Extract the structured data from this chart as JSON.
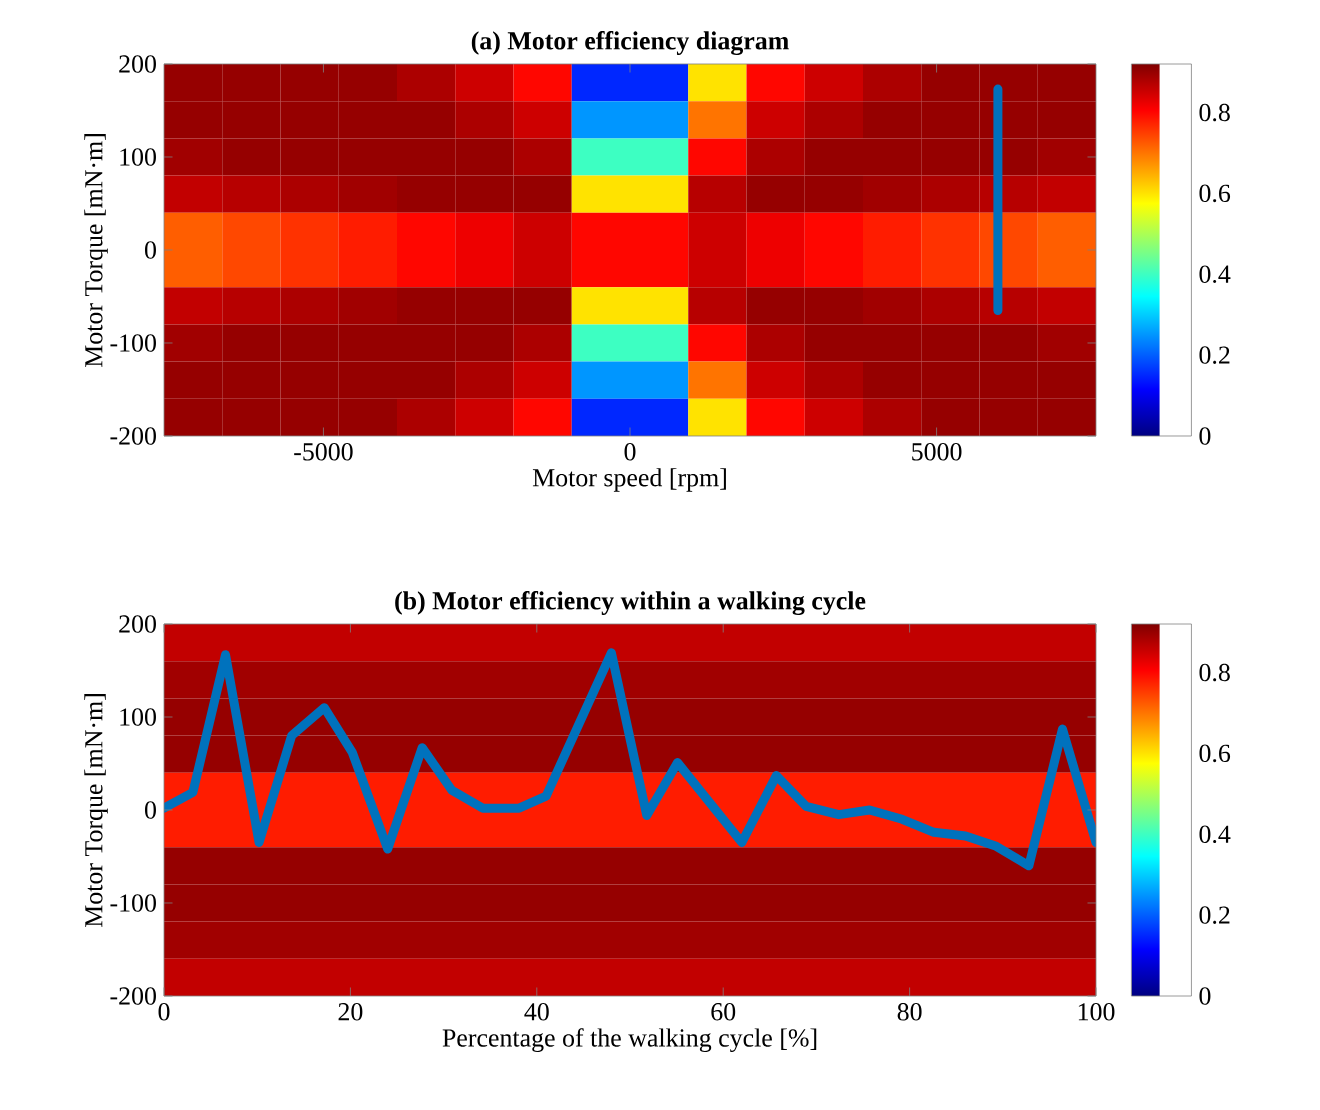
{
  "chart_data": [
    {
      "type": "heatmap",
      "title": "(a) Motor efficiency diagram",
      "xlabel": "Motor speed [rpm]",
      "ylabel": "Motor Torque [mN·m]",
      "cells": [
        [
          0.9,
          0.9,
          0.9,
          0.9,
          0.88,
          0.85,
          0.8,
          0.15,
          0.15,
          0.6,
          0.8,
          0.85,
          0.88,
          0.9,
          0.9,
          0.9
        ],
        [
          0.9,
          0.9,
          0.9,
          0.9,
          0.9,
          0.88,
          0.85,
          0.25,
          0.25,
          0.7,
          0.85,
          0.88,
          0.9,
          0.9,
          0.9,
          0.9
        ],
        [
          0.89,
          0.9,
          0.9,
          0.9,
          0.9,
          0.9,
          0.88,
          0.4,
          0.4,
          0.8,
          0.88,
          0.9,
          0.9,
          0.9,
          0.9,
          0.89
        ],
        [
          0.86,
          0.87,
          0.88,
          0.89,
          0.9,
          0.9,
          0.9,
          0.6,
          0.6,
          0.87,
          0.9,
          0.9,
          0.89,
          0.88,
          0.87,
          0.86
        ],
        [
          0.72,
          0.74,
          0.76,
          0.78,
          0.8,
          0.82,
          0.85,
          0.8,
          0.8,
          0.85,
          0.82,
          0.8,
          0.78,
          0.76,
          0.74,
          0.72
        ],
        [
          0.72,
          0.74,
          0.76,
          0.78,
          0.8,
          0.82,
          0.85,
          0.8,
          0.8,
          0.85,
          0.82,
          0.8,
          0.78,
          0.76,
          0.74,
          0.72
        ],
        [
          0.86,
          0.87,
          0.88,
          0.89,
          0.9,
          0.9,
          0.9,
          0.6,
          0.6,
          0.87,
          0.9,
          0.9,
          0.89,
          0.88,
          0.87,
          0.86
        ],
        [
          0.89,
          0.9,
          0.9,
          0.9,
          0.9,
          0.9,
          0.88,
          0.4,
          0.4,
          0.8,
          0.88,
          0.9,
          0.9,
          0.9,
          0.9,
          0.89
        ],
        [
          0.9,
          0.9,
          0.9,
          0.9,
          0.9,
          0.88,
          0.85,
          0.25,
          0.25,
          0.7,
          0.85,
          0.88,
          0.9,
          0.9,
          0.9,
          0.9
        ],
        [
          0.9,
          0.9,
          0.9,
          0.9,
          0.88,
          0.85,
          0.8,
          0.15,
          0.15,
          0.6,
          0.8,
          0.85,
          0.88,
          0.9,
          0.9,
          0.9
        ]
      ],
      "clim": [
        0,
        0.92
      ],
      "cticks": [
        0,
        0.2,
        0.4,
        0.6,
        0.8
      ],
      "xlim": [
        -7600,
        7600
      ],
      "xticks": [
        -5000,
        0,
        5000
      ],
      "ylim": [
        -200,
        200
      ],
      "yticks": [
        -200,
        -100,
        0,
        100,
        200
      ],
      "series": [
        {
          "type": "line",
          "color": "#0072bd",
          "x": [
            6000,
            6000
          ],
          "values": [
            173,
            -65
          ]
        }
      ]
    },
    {
      "type": "heatmap",
      "title": "(b) Motor efficiency within a walking cycle",
      "xlabel": "Percentage of the walking cycle [%]",
      "ylabel": "Motor Torque [mN·m]",
      "cells": [
        [
          0.86
        ],
        [
          0.89
        ],
        [
          0.9
        ],
        [
          0.9
        ],
        [
          0.78
        ],
        [
          0.78
        ],
        [
          0.9
        ],
        [
          0.9
        ],
        [
          0.89
        ],
        [
          0.86
        ]
      ],
      "clim": [
        0,
        0.92
      ],
      "cticks": [
        0,
        0.2,
        0.4,
        0.6,
        0.8
      ],
      "xlim": [
        0,
        100
      ],
      "xticks": [
        0,
        20,
        40,
        60,
        80,
        100
      ],
      "ylim": [
        -200,
        200
      ],
      "yticks": [
        -200,
        -100,
        0,
        100,
        200
      ],
      "series": [
        {
          "type": "line",
          "color": "#0072bd",
          "x": [
            0,
            3.1,
            6.6,
            10.2,
            13.7,
            17.2,
            20.2,
            24,
            27.7,
            30.9,
            34.2,
            38.1,
            41,
            48,
            51.8,
            55.1,
            62,
            65.7,
            68.9,
            72.4,
            75.7,
            79.2,
            82.6,
            86,
            89.3,
            92.8,
            96.4,
            100
          ],
          "values": [
            2,
            19,
            167,
            -35,
            80,
            110,
            62,
            -42,
            67,
            21,
            2,
            2,
            15,
            169,
            -6,
            51,
            -35,
            37,
            4,
            -5,
            0,
            -10,
            -24,
            -28,
            -39,
            -60,
            87,
            -35
          ]
        }
      ]
    }
  ]
}
